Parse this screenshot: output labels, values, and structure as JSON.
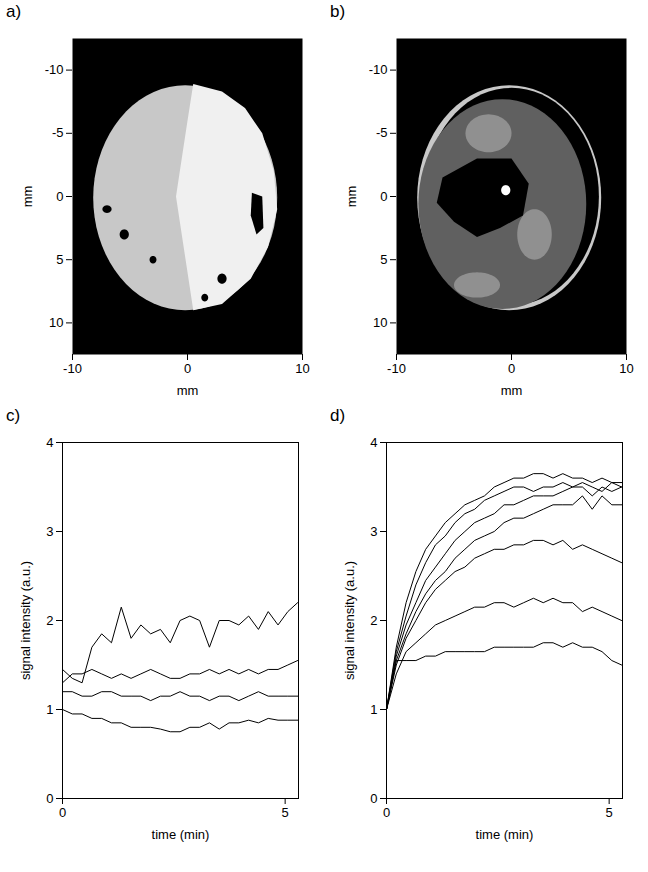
{
  "chart_data": [
    {
      "type": "image",
      "title": "a)",
      "xlabel": "mm",
      "ylabel": "mm",
      "xlim": [
        -10,
        10
      ],
      "ylim": [
        12.5,
        -12.5
      ],
      "xticks": [
        -10,
        0,
        10
      ],
      "yticks": [
        -10,
        -5,
        0,
        5,
        10
      ],
      "regions": [
        {
          "shape": "ellipse",
          "cx": -0.2,
          "cy": 0.1,
          "rx": 8.0,
          "ry": 8.9,
          "color": "#c8c8c8"
        },
        {
          "shape": "polygon",
          "points": [
            [
              0.5,
              -8.9
            ],
            [
              3,
              -8.3
            ],
            [
              5,
              -7
            ],
            [
              6.5,
              -5
            ],
            [
              7.5,
              -2
            ],
            [
              7.8,
              1
            ],
            [
              7,
              4
            ],
            [
              5.5,
              6.5
            ],
            [
              3,
              8.5
            ],
            [
              0.5,
              9
            ],
            [
              0,
              6
            ],
            [
              -0.5,
              3
            ],
            [
              -1,
              0
            ],
            [
              -0.5,
              -3
            ],
            [
              0,
              -6
            ]
          ],
          "color": "#f0f0f0"
        },
        {
          "shape": "polygon",
          "points": [
            [
              5.6,
              -0.3
            ],
            [
              6.5,
              0
            ],
            [
              6.6,
              2.5
            ],
            [
              6,
              3
            ],
            [
              5.5,
              1.5
            ]
          ],
          "color": "#000000"
        },
        {
          "shape": "ellipse",
          "cx": -7,
          "cy": 1,
          "rx": 0.4,
          "ry": 0.3,
          "color": "#000000"
        },
        {
          "shape": "ellipse",
          "cx": -5.5,
          "cy": 3,
          "rx": 0.4,
          "ry": 0.4,
          "color": "#000000"
        },
        {
          "shape": "ellipse",
          "cx": -3,
          "cy": 5,
          "rx": 0.3,
          "ry": 0.3,
          "color": "#000000"
        },
        {
          "shape": "ellipse",
          "cx": 3,
          "cy": 6.5,
          "rx": 0.4,
          "ry": 0.4,
          "color": "#000000"
        },
        {
          "shape": "ellipse",
          "cx": 1.5,
          "cy": 8,
          "rx": 0.3,
          "ry": 0.3,
          "color": "#000000"
        }
      ]
    },
    {
      "type": "image",
      "title": "b)",
      "xlabel": "mm",
      "ylabel": "mm",
      "xlim": [
        -10,
        10
      ],
      "ylim": [
        12.5,
        -12.5
      ],
      "xticks": [
        -10,
        0,
        10
      ],
      "yticks": [
        -10,
        -5,
        0,
        5,
        10
      ],
      "regions": [
        {
          "shape": "ellipse",
          "cx": -0.2,
          "cy": 0.1,
          "rx": 8.0,
          "ry": 8.9,
          "color": "#c8c8c8"
        },
        {
          "shape": "ellipse",
          "cx": 0.0,
          "cy": 0.0,
          "rx": 7.6,
          "ry": 8.6,
          "color": "#000000"
        },
        {
          "shape": "ellipse",
          "cx": -0.8,
          "cy": 0.6,
          "rx": 7.3,
          "ry": 8.3,
          "color": "#606060"
        },
        {
          "shape": "ellipse",
          "cx": -2,
          "cy": -5,
          "rx": 2,
          "ry": 1.5,
          "color": "#909090"
        },
        {
          "shape": "ellipse",
          "cx": 2,
          "cy": 3,
          "rx": 1.5,
          "ry": 2,
          "color": "#909090"
        },
        {
          "shape": "ellipse",
          "cx": -3,
          "cy": 7,
          "rx": 2,
          "ry": 1,
          "color": "#909090"
        },
        {
          "shape": "polygon",
          "points": [
            [
              -6,
              -1.5
            ],
            [
              -3,
              -3
            ],
            [
              0,
              -3
            ],
            [
              1.5,
              -1
            ],
            [
              1,
              1.5
            ],
            [
              -1,
              2.5
            ],
            [
              -3,
              3.2
            ],
            [
              -5,
              2
            ],
            [
              -6.5,
              0.5
            ]
          ],
          "color": "#000000"
        },
        {
          "shape": "ellipse",
          "cx": -0.5,
          "cy": -0.5,
          "rx": 0.4,
          "ry": 0.4,
          "color": "#ffffff"
        }
      ]
    },
    {
      "type": "line",
      "title": "c)",
      "xlabel": "time (min)",
      "ylabel": "signal intensity (a.u.)",
      "xlim": [
        0,
        5.3
      ],
      "ylim": [
        0,
        4
      ],
      "xticks": [
        0,
        5
      ],
      "yticks": [
        0,
        1,
        2,
        3,
        4
      ],
      "color": "#000000",
      "x": [
        0,
        0.22,
        0.44,
        0.66,
        0.88,
        1.1,
        1.32,
        1.54,
        1.76,
        1.98,
        2.2,
        2.42,
        2.64,
        2.86,
        3.08,
        3.3,
        3.52,
        3.74,
        3.96,
        4.18,
        4.4,
        4.62,
        4.84,
        5.06,
        5.28
      ],
      "series": [
        {
          "values": [
            1.45,
            1.35,
            1.3,
            1.7,
            1.85,
            1.75,
            2.15,
            1.8,
            1.95,
            1.85,
            1.9,
            1.75,
            2.0,
            2.05,
            2.0,
            1.7,
            2.0,
            2.0,
            1.95,
            2.05,
            1.9,
            2.1,
            1.95,
            2.1,
            2.2
          ]
        },
        {
          "values": [
            1.3,
            1.4,
            1.4,
            1.45,
            1.4,
            1.35,
            1.4,
            1.35,
            1.4,
            1.45,
            1.4,
            1.35,
            1.35,
            1.4,
            1.4,
            1.45,
            1.4,
            1.45,
            1.4,
            1.45,
            1.4,
            1.45,
            1.45,
            1.5,
            1.55
          ]
        },
        {
          "values": [
            1.2,
            1.2,
            1.15,
            1.15,
            1.2,
            1.2,
            1.15,
            1.15,
            1.15,
            1.1,
            1.15,
            1.15,
            1.2,
            1.15,
            1.15,
            1.1,
            1.15,
            1.15,
            1.1,
            1.15,
            1.2,
            1.15,
            1.15,
            1.15,
            1.15
          ]
        },
        {
          "values": [
            1.0,
            0.95,
            0.95,
            0.9,
            0.9,
            0.85,
            0.85,
            0.8,
            0.8,
            0.8,
            0.78,
            0.75,
            0.75,
            0.8,
            0.8,
            0.85,
            0.78,
            0.85,
            0.85,
            0.88,
            0.85,
            0.9,
            0.88,
            0.88,
            0.88
          ]
        }
      ]
    },
    {
      "type": "line",
      "title": "d)",
      "xlabel": "time (min)",
      "ylabel": "signal intensity (a.u.)",
      "xlim": [
        0,
        5.3
      ],
      "ylim": [
        0,
        4
      ],
      "xticks": [
        0,
        5
      ],
      "yticks": [
        0,
        1,
        2,
        3,
        4
      ],
      "color": "#000000",
      "x": [
        0,
        0.22,
        0.44,
        0.66,
        0.88,
        1.1,
        1.32,
        1.54,
        1.76,
        1.98,
        2.2,
        2.42,
        2.64,
        2.86,
        3.08,
        3.3,
        3.52,
        3.74,
        3.96,
        4.18,
        4.4,
        4.62,
        4.84,
        5.06,
        5.28
      ],
      "series": [
        {
          "values": [
            1.0,
            1.7,
            2.2,
            2.55,
            2.8,
            2.95,
            3.1,
            3.2,
            3.3,
            3.35,
            3.4,
            3.5,
            3.55,
            3.6,
            3.6,
            3.65,
            3.65,
            3.6,
            3.65,
            3.6,
            3.6,
            3.55,
            3.6,
            3.55,
            3.55
          ]
        },
        {
          "values": [
            1.0,
            1.65,
            2.05,
            2.4,
            2.65,
            2.85,
            2.95,
            3.1,
            3.2,
            3.25,
            3.35,
            3.4,
            3.45,
            3.5,
            3.5,
            3.45,
            3.5,
            3.5,
            3.55,
            3.5,
            3.55,
            3.5,
            3.45,
            3.55,
            3.5
          ]
        },
        {
          "values": [
            1.0,
            1.6,
            1.95,
            2.2,
            2.45,
            2.6,
            2.75,
            2.9,
            3.0,
            3.1,
            3.15,
            3.2,
            3.3,
            3.3,
            3.35,
            3.4,
            3.4,
            3.4,
            3.45,
            3.5,
            3.5,
            3.4,
            3.5,
            3.45,
            3.5
          ]
        },
        {
          "values": [
            1.0,
            1.55,
            1.85,
            2.1,
            2.3,
            2.45,
            2.55,
            2.7,
            2.8,
            2.9,
            2.95,
            3.0,
            3.1,
            3.15,
            3.15,
            3.2,
            3.25,
            3.3,
            3.3,
            3.3,
            3.4,
            3.25,
            3.4,
            3.3,
            3.3
          ]
        },
        {
          "values": [
            1.0,
            1.5,
            1.8,
            2.0,
            2.2,
            2.35,
            2.45,
            2.55,
            2.6,
            2.7,
            2.75,
            2.8,
            2.8,
            2.85,
            2.85,
            2.9,
            2.9,
            2.85,
            2.9,
            2.8,
            2.85,
            2.8,
            2.75,
            2.7,
            2.65
          ]
        },
        {
          "values": [
            1.0,
            1.4,
            1.65,
            1.75,
            1.85,
            1.95,
            2.0,
            2.05,
            2.1,
            2.15,
            2.15,
            2.2,
            2.2,
            2.15,
            2.2,
            2.25,
            2.2,
            2.25,
            2.2,
            2.2,
            2.1,
            2.15,
            2.1,
            2.05,
            2.0
          ]
        },
        {
          "values": [
            1.0,
            1.55,
            1.55,
            1.55,
            1.6,
            1.6,
            1.65,
            1.65,
            1.65,
            1.65,
            1.65,
            1.7,
            1.7,
            1.7,
            1.7,
            1.7,
            1.75,
            1.75,
            1.7,
            1.75,
            1.7,
            1.7,
            1.65,
            1.55,
            1.5
          ]
        }
      ]
    }
  ]
}
